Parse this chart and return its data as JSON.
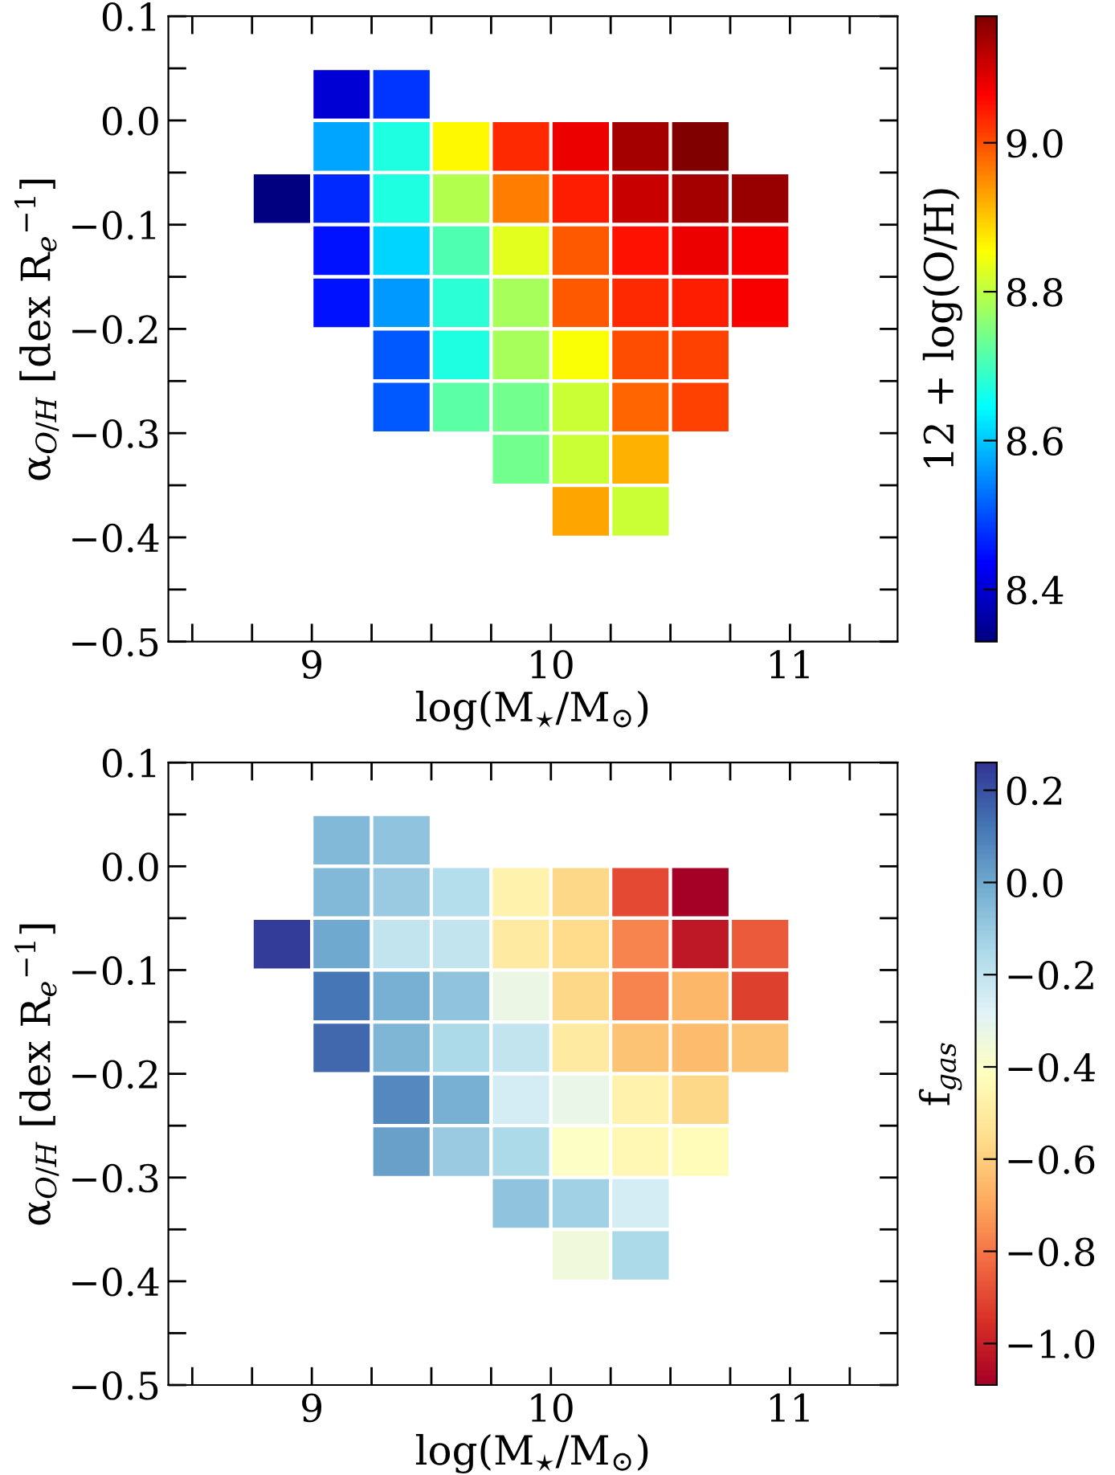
{
  "chart_data": [
    {
      "type": "heatmap",
      "xlabel": "log(M$_{⋆}$/M$_{⊙}$)",
      "ylabel": "α$_{O/H}$ [dex R$_{e}$$^{−1}$]",
      "clabel": "12 + log(O/H)",
      "x": [
        8.875,
        9.125,
        9.375,
        9.625,
        9.875,
        10.125,
        10.375,
        10.625,
        10.875
      ],
      "y": [
        0.025,
        -0.025,
        -0.075,
        -0.125,
        -0.175,
        -0.225,
        -0.275,
        -0.325,
        -0.375
      ],
      "cells": [
        [
          null,
          8.4,
          8.48,
          null,
          null,
          null,
          null,
          null,
          null
        ],
        [
          null,
          8.57,
          8.67,
          8.86,
          9.03,
          9.08,
          9.14,
          9.17,
          null
        ],
        [
          8.33,
          8.47,
          8.67,
          8.79,
          8.96,
          9.04,
          9.11,
          9.14,
          9.15
        ],
        [
          null,
          8.45,
          8.61,
          8.71,
          8.83,
          8.99,
          9.05,
          9.08,
          9.07
        ],
        [
          null,
          8.45,
          8.56,
          8.68,
          8.78,
          8.99,
          9.03,
          9.04,
          9.07
        ],
        [
          null,
          null,
          8.51,
          8.67,
          8.78,
          8.85,
          9.0,
          9.01,
          null
        ],
        [
          null,
          null,
          8.51,
          8.72,
          8.74,
          8.81,
          8.98,
          9.01,
          null
        ],
        [
          null,
          null,
          null,
          null,
          8.74,
          8.81,
          8.92,
          null,
          null
        ],
        [
          null,
          null,
          null,
          null,
          null,
          8.93,
          8.81,
          null,
          null
        ]
      ],
      "colors": [
        "#000080",
        "#0000ff",
        "#0080ff",
        "#00ffff",
        "#80ff80",
        "#ffff00",
        "#ff8000",
        "#ff0000",
        "#800000"
      ],
      "clim": [
        8.33,
        9.17
      ],
      "cticks": [
        8.4,
        8.6,
        8.8,
        {
          "value": 9,
          "label": "9.0"
        }
      ],
      "xlim": [
        8.4,
        11.45
      ],
      "ylim": [
        -0.5,
        0.1
      ],
      "xticks": [
        {
          "value": 8.5,
          "label": null
        },
        {
          "value": 8.75,
          "label": null
        },
        9,
        {
          "value": 9.25,
          "label": null
        },
        {
          "value": 9.5,
          "label": null
        },
        {
          "value": 9.75,
          "label": null
        },
        10,
        {
          "value": 10.25,
          "label": null
        },
        {
          "value": 10.5,
          "label": null
        },
        {
          "value": 10.75,
          "label": null
        },
        11,
        {
          "value": 11.25,
          "label": null
        }
      ],
      "yticks": [
        {
          "value": -0.5,
          "label": "−0.5"
        },
        {
          "value": -0.45,
          "label": null
        },
        {
          "value": -0.4,
          "label": "−0.4"
        },
        {
          "value": -0.35,
          "label": null
        },
        {
          "value": -0.3,
          "label": "−0.3"
        },
        {
          "value": -0.25,
          "label": null
        },
        {
          "value": -0.2,
          "label": "−0.2"
        },
        {
          "value": -0.15,
          "label": null
        },
        {
          "value": -0.1,
          "label": "−0.1"
        },
        {
          "value": -0.05,
          "label": null
        },
        {
          "value": 0,
          "label": "0.0"
        },
        {
          "value": 0.05,
          "label": null
        },
        0.1
      ]
    },
    {
      "type": "heatmap",
      "xlabel": "log(M$_{⋆}$/M$_{⊙}$)",
      "ylabel": "α$_{O/H}$ [dex R$_{e}$$^{−1}$]",
      "clabel": "f$_{gas}$",
      "x": [
        8.875,
        9.125,
        9.375,
        9.625,
        9.875,
        10.125,
        10.375,
        10.625,
        10.875
      ],
      "y": [
        0.025,
        -0.025,
        -0.075,
        -0.125,
        -0.175,
        -0.225,
        -0.275,
        -0.325,
        -0.375
      ],
      "cells": [
        [
          null,
          -0.05,
          -0.08,
          null,
          null,
          null,
          null,
          null,
          null
        ],
        [
          null,
          -0.05,
          -0.1,
          -0.17,
          -0.47,
          -0.57,
          -0.9,
          -1.09,
          null
        ],
        [
          0.24,
          0.0,
          -0.2,
          -0.2,
          -0.5,
          -0.56,
          -0.77,
          -1.02,
          -0.86
        ],
        [
          null,
          0.12,
          -0.02,
          -0.08,
          -0.33,
          -0.57,
          -0.77,
          -0.66,
          -0.92
        ],
        [
          null,
          0.15,
          -0.04,
          -0.15,
          -0.2,
          -0.5,
          -0.63,
          -0.65,
          -0.63
        ],
        [
          null,
          null,
          0.08,
          -0.02,
          -0.25,
          -0.32,
          -0.47,
          -0.57,
          null
        ],
        [
          null,
          null,
          0.02,
          -0.1,
          -0.15,
          -0.4,
          -0.45,
          -0.43,
          null
        ],
        [
          null,
          null,
          null,
          null,
          -0.08,
          -0.12,
          -0.25,
          null,
          null
        ],
        [
          null,
          null,
          null,
          null,
          null,
          -0.35,
          -0.15,
          null,
          null
        ]
      ],
      "colors": [
        "#a50026",
        "#d73027",
        "#f46d43",
        "#fdae61",
        "#fee090",
        "#ffffbf",
        "#e0f3f8",
        "#abd9e9",
        "#74add1",
        "#4575b4",
        "#313695"
      ],
      "clim": [
        -1.09,
        0.26
      ],
      "cticks": [
        {
          "value": -1.0,
          "label": "−1.0"
        },
        {
          "value": -0.8,
          "label": "−0.8"
        },
        {
          "value": -0.6,
          "label": "−0.6"
        },
        {
          "value": -0.4,
          "label": "−0.4"
        },
        {
          "value": -0.2,
          "label": "−0.2"
        },
        {
          "value": 0,
          "label": "0.0"
        },
        0.2
      ],
      "xlim": [
        8.4,
        11.45
      ],
      "ylim": [
        -0.5,
        0.1
      ],
      "xticks": [
        {
          "value": 8.5,
          "label": null
        },
        {
          "value": 8.75,
          "label": null
        },
        9,
        {
          "value": 9.25,
          "label": null
        },
        {
          "value": 9.5,
          "label": null
        },
        {
          "value": 9.75,
          "label": null
        },
        10,
        {
          "value": 10.25,
          "label": null
        },
        {
          "value": 10.5,
          "label": null
        },
        {
          "value": 10.75,
          "label": null
        },
        11,
        {
          "value": 11.25,
          "label": null
        }
      ],
      "yticks": [
        {
          "value": -0.5,
          "label": "−0.5"
        },
        {
          "value": -0.45,
          "label": null
        },
        {
          "value": -0.4,
          "label": "−0.4"
        },
        {
          "value": -0.35,
          "label": null
        },
        {
          "value": -0.3,
          "label": "−0.3"
        },
        {
          "value": -0.25,
          "label": null
        },
        {
          "value": -0.2,
          "label": "−0.2"
        },
        {
          "value": -0.15,
          "label": null
        },
        {
          "value": -0.1,
          "label": "−0.1"
        },
        {
          "value": -0.05,
          "label": null
        },
        {
          "value": 0,
          "label": "0.0"
        },
        {
          "value": 0.05,
          "label": null
        },
        0.1
      ]
    }
  ]
}
